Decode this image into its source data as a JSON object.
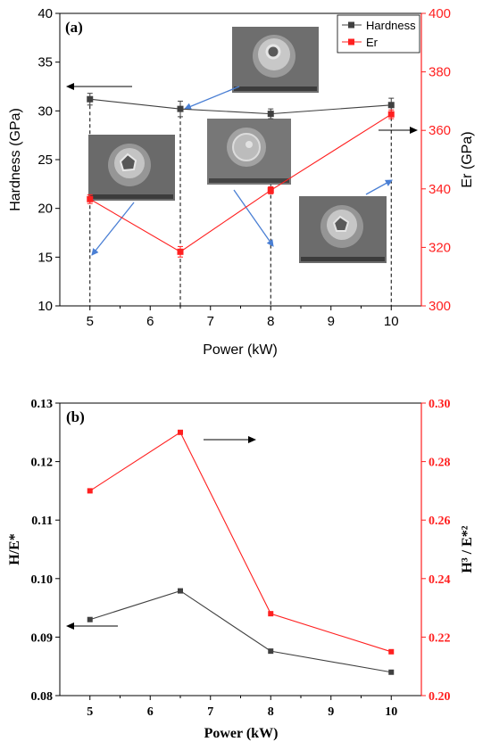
{
  "chart_data": [
    {
      "panel_label": "(a)",
      "type": "line",
      "x": [
        5,
        6.5,
        8,
        10
      ],
      "xlabel": "Power (kW)",
      "xlim": [
        4.5,
        10.5
      ],
      "xticks": [
        5,
        6,
        7,
        8,
        9,
        10
      ],
      "ylabel": "Hardness (GPa)",
      "ylim": [
        10,
        40
      ],
      "yticks": [
        10,
        15,
        20,
        25,
        30,
        35,
        40
      ],
      "y2label": "Er (GPa)",
      "y2lim": [
        300,
        400
      ],
      "y2ticks": [
        300,
        320,
        340,
        360,
        380,
        400
      ],
      "legend_position": "top-right",
      "series": [
        {
          "name": "Hardness",
          "axis": "left",
          "color": "#404040",
          "values": [
            31.2,
            30.2,
            29.7,
            30.6
          ],
          "errors": [
            0.6,
            0.8,
            0.5,
            0.7
          ]
        },
        {
          "name": "Er",
          "axis": "right",
          "color": "#ff2020",
          "values": [
            336.5,
            318.5,
            339.5,
            365.5
          ],
          "errors": [
            1.5,
            1.8,
            1.2,
            1.5
          ]
        }
      ],
      "annotations": {
        "images": [
          "sem-micrograph-5kw",
          "sem-micrograph-6.5kw",
          "sem-micrograph-8kw",
          "sem-micrograph-10kw"
        ],
        "axis_arrows": [
          "left",
          "right"
        ]
      }
    },
    {
      "panel_label": "(b)",
      "type": "line",
      "x": [
        5,
        6.5,
        8,
        10
      ],
      "xlabel": "Power (kW)",
      "xlim": [
        4.5,
        10.5
      ],
      "xticks": [
        5,
        6,
        7,
        8,
        9,
        10
      ],
      "ylabel": "H/E*",
      "ylim": [
        0.08,
        0.13
      ],
      "yticks": [
        0.08,
        0.09,
        0.1,
        0.11,
        0.12,
        0.13
      ],
      "y2label": "H³ / E*²",
      "y2lim": [
        0.2,
        0.3
      ],
      "y2ticks": [
        0.2,
        0.22,
        0.24,
        0.26,
        0.28,
        0.3
      ],
      "series": [
        {
          "axis": "left",
          "color": "#404040",
          "values": [
            0.093,
            0.0979,
            0.0876,
            0.084
          ]
        },
        {
          "axis": "right",
          "color": "#ff2020",
          "values": [
            0.27,
            0.29,
            0.228,
            0.215
          ]
        }
      ],
      "annotations": {
        "axis_arrows": [
          "left",
          "right"
        ]
      }
    }
  ]
}
